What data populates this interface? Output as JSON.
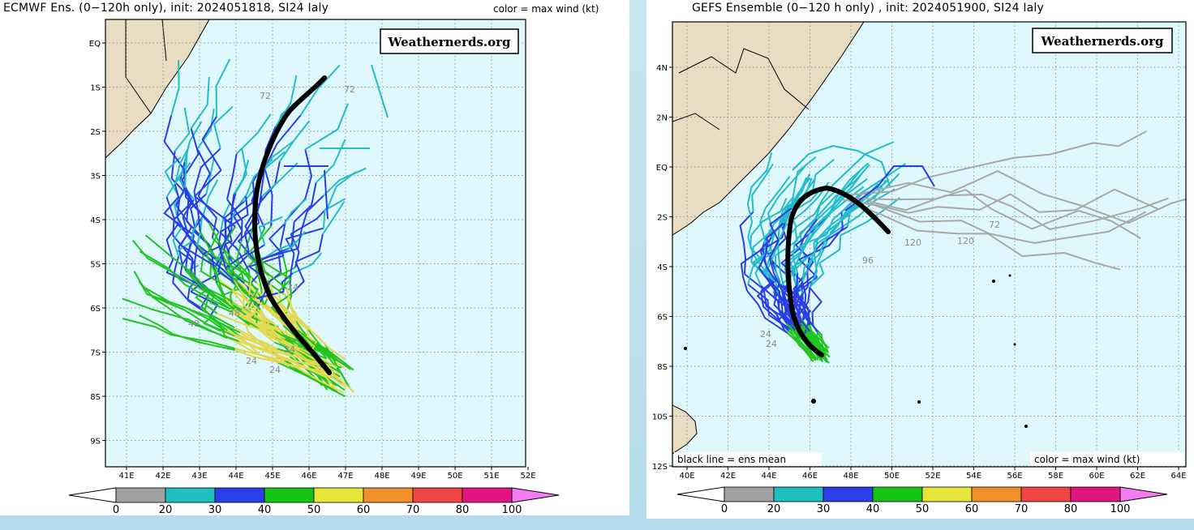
{
  "left": {
    "title": "ECMWF Ens. (0−120h only), init: 2024051818, SI24 Ialy",
    "color_label": "color = max wind (kt)",
    "brand": "Weathernerds.org",
    "lat_labels": [
      "EQ",
      "1S",
      "2S",
      "3S",
      "4S",
      "5S",
      "6S",
      "7S",
      "8S",
      "9S"
    ],
    "lon_labels": [
      "41E",
      "42E",
      "43E",
      "44E",
      "45E",
      "46E",
      "47E",
      "48E",
      "49E",
      "50E",
      "51E",
      "52E"
    ],
    "hour_labels": [
      "72",
      "72",
      "48",
      "48",
      "24",
      "24",
      "24",
      "24"
    ]
  },
  "right": {
    "title": "GEFS Ensemble (0−120 h only) , init: 2024051900, SI24 Ialy",
    "brand": "Weathernerds.org",
    "mean_label": "black line = ens mean",
    "color_label": "color = max wind (kt)",
    "lat_labels": [
      "4N",
      "2N",
      "EQ",
      "2S",
      "4S",
      "6S",
      "8S",
      "10S",
      "12S"
    ],
    "lon_labels": [
      "40E",
      "42E",
      "44E",
      "46E",
      "48E",
      "50E",
      "52E",
      "54E",
      "56E",
      "58E",
      "60E",
      "62E",
      "64E"
    ],
    "hour_labels": [
      "120",
      "96",
      "72",
      "120",
      "24",
      "24"
    ]
  },
  "colorbar": {
    "ticks": [
      "0",
      "20",
      "30",
      "40",
      "50",
      "60",
      "70",
      "80",
      "100"
    ],
    "colors": [
      "#a0a0a0",
      "#1fbfbf",
      "#2b3fe8",
      "#16c416",
      "#e5e53a",
      "#f0902a",
      "#f04545",
      "#e0157f"
    ],
    "end_color": "#f07ef0"
  },
  "track_colors": {
    "gray": "#a8a8a8",
    "cyan": "#23bcc8",
    "blue": "#2a3ee6",
    "green": "#22c422",
    "yellow": "#e4d850",
    "mean": "#000000"
  },
  "land_color": "#e8dcc2",
  "ocean_color": "#dff8fb"
}
